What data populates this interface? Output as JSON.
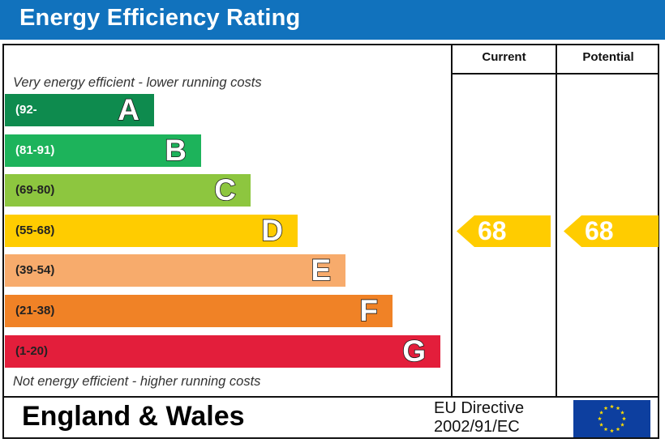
{
  "header": {
    "title": "Energy Efficiency Rating"
  },
  "columns": {
    "current": "Current",
    "potential": "Potential"
  },
  "captions": {
    "top": "Very energy efficient - lower running costs",
    "bottom": "Not energy efficient - higher running costs"
  },
  "chart_data": {
    "type": "bar",
    "title": "Energy Efficiency Rating",
    "categories": [
      "A",
      "B",
      "C",
      "D",
      "E",
      "F",
      "G"
    ],
    "ranges": [
      "(92-",
      "(81-91)",
      "(69-80)",
      "(55-68)",
      "(39-54)",
      "(21-38)",
      "(1-20)"
    ],
    "colors": [
      "#0e8b4e",
      "#1db35b",
      "#8dc63f",
      "#ffcc00",
      "#f7ab6c",
      "#f08226",
      "#e31e3b"
    ],
    "current_rating": 68,
    "potential_rating": 68,
    "current_band": "D",
    "potential_band": "D",
    "arrow_color": "#ffcc00"
  },
  "footer": {
    "region": "England & Wales",
    "directive_line1": "EU Directive",
    "directive_line2": "2002/91/EC",
    "flag_icon": "eu-flag-icon",
    "flag_color": "#0d3f9f",
    "star_color": "#ffdd00"
  }
}
